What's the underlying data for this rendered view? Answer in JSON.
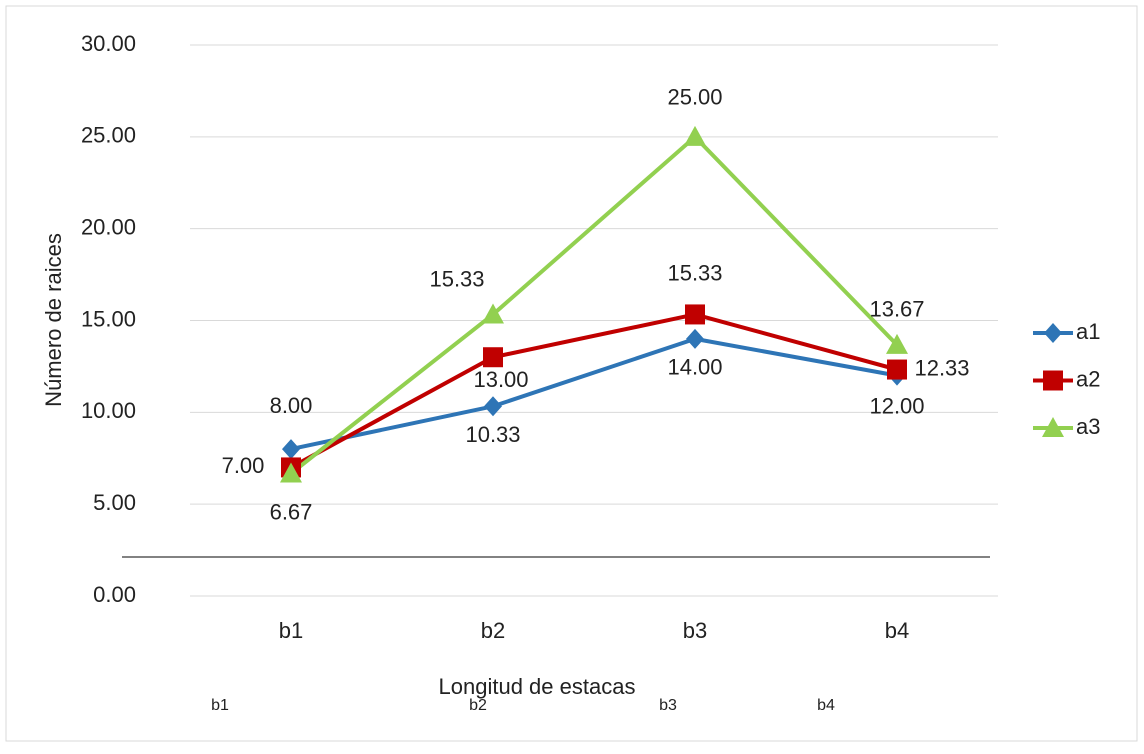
{
  "chart_data": {
    "type": "line",
    "x_label": "Longitud de estacas",
    "y_label": "Número de raices",
    "categories": [
      "b1",
      "b2",
      "b3",
      "b4"
    ],
    "secondary_categories": [
      "b1",
      "b2",
      "b3",
      "b4"
    ],
    "series": [
      {
        "name": "a1",
        "color": "#2e75b6",
        "marker": "diamond",
        "values": [
          8,
          10.33,
          14,
          12
        ],
        "value_labels": [
          "8.00",
          "10.33",
          "14.00",
          "12.00"
        ]
      },
      {
        "name": "a2",
        "color": "#c00000",
        "marker": "square",
        "values": [
          7,
          13,
          15.33,
          12.33
        ],
        "value_labels": [
          "7.00",
          "13.00",
          "15.33",
          "12.33"
        ]
      },
      {
        "name": "a3",
        "color": "#92d050",
        "marker": "triangle",
        "values": [
          6.67,
          15.33,
          25,
          13.67
        ],
        "value_labels": [
          "6.67",
          "15.33",
          "25.00",
          "13.67"
        ]
      }
    ],
    "ylim": [
      0,
      30
    ],
    "yticks": [
      {
        "value": 0,
        "label": "0.00"
      },
      {
        "value": 5,
        "label": "5.00"
      },
      {
        "value": 10,
        "label": "10.00"
      },
      {
        "value": 15,
        "label": "15.00"
      },
      {
        "value": 20,
        "label": "20.00"
      },
      {
        "value": 25,
        "label": "25.00"
      },
      {
        "value": 30,
        "label": "30.00"
      }
    ],
    "grid": true,
    "legend": "right"
  }
}
